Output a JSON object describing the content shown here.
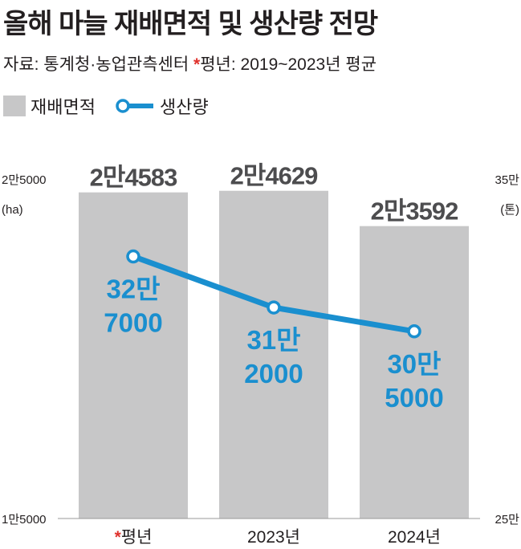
{
  "title": "올해 마늘 재배면적 및 생산량 전망",
  "source": {
    "prefix": "자료: 통계청·농업관측센터 ",
    "star": "*",
    "note": "평년: 2019~2023년 평균"
  },
  "legend": {
    "bar_label": "재배면적",
    "line_label": "생산량"
  },
  "colors": {
    "bar": "#c7c7c8",
    "line": "#1a8fcf",
    "star": "#e0322d",
    "bar_label": "#4d4d4f"
  },
  "chart_data": {
    "type": "bar",
    "categories": [
      "평년",
      "2023년",
      "2024년"
    ],
    "category_star": [
      true,
      false,
      false
    ],
    "series": [
      {
        "name": "재배면적",
        "type": "bar",
        "unit": "ha",
        "values": [
          24583,
          24629,
          23592
        ],
        "labels": [
          "2만4583",
          "2만4629",
          "2만3592"
        ]
      },
      {
        "name": "생산량",
        "type": "line",
        "unit": "톤",
        "values": [
          327000,
          312000,
          305000
        ],
        "labels": [
          [
            "32만",
            "7000"
          ],
          [
            "31만",
            "2000"
          ],
          [
            "30만",
            "5000"
          ]
        ]
      }
    ],
    "left_axis": {
      "min": 15000,
      "max": 25000,
      "top_label": "2만5000",
      "unit_label": "(ha)",
      "bottom_label": "1만5000"
    },
    "right_axis": {
      "min": 250000,
      "max": 350000,
      "top_label": "35만",
      "unit_label": "(톤)",
      "bottom_label": "25만"
    },
    "grid": false
  }
}
